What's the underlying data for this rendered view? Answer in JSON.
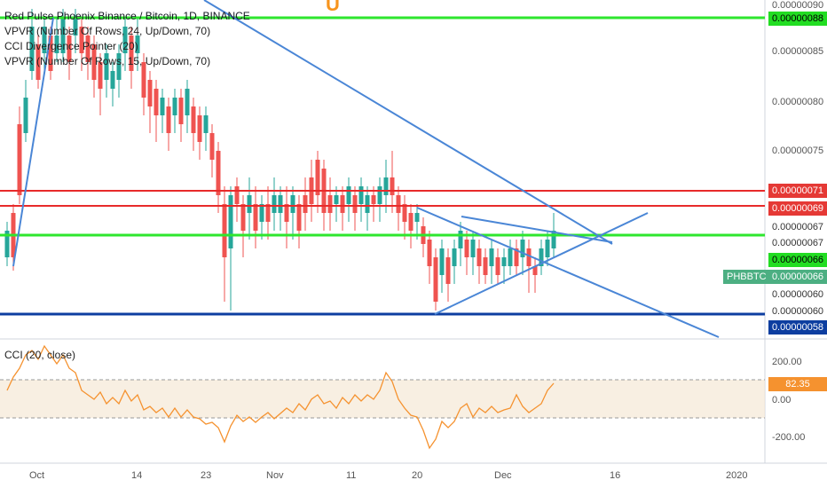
{
  "legend": {
    "title": "Red Pulse Phoenix Binance / Bitcoin, 1D, BINANCE",
    "ind1": "VPVR (Number Of Rows, 24, Up/Down, 70)",
    "ind2": "CCI Divergence Pointer (20)",
    "ind3": "VPVR (Number Of Rows, 15, Up/Down, 70)",
    "cci": "CCI (20, close)"
  },
  "logo_glyph": "U",
  "price_axis": [
    "0.00000090",
    "0.00000085",
    "0.00000080",
    "0.00000075"
  ],
  "cci_axis": [
    "200.00",
    "0.00",
    "-200.00"
  ],
  "tags": {
    "green_top": "0.00000088",
    "red_1": "0.00000071",
    "red_2": "0.00000069",
    "plain_1": "0.00000067",
    "plain_2": "0.00000067",
    "green_mid": "0.00000066",
    "symbol": "PHBBTC",
    "symbol_price": "0.00000066",
    "plain_3": "0.00000060",
    "plain_4": "0.00000060",
    "blue_bottom": "0.00000058",
    "cci_value": "82.35"
  },
  "time_axis": [
    "Oct",
    "14",
    "23",
    "Nov",
    "11",
    "20",
    "Dec",
    "16",
    "2020"
  ],
  "colors": {
    "up": "#26a69a",
    "down": "#ef5350",
    "vp_blue": "#5aa9e6",
    "vp_yellow": "#f7cf6a",
    "trend": "#4a86d6",
    "green_line": "#2ee62e",
    "red_line": "#e82a2a",
    "navy_line": "#0d3ea0",
    "cci_line": "#f5922f"
  }
}
